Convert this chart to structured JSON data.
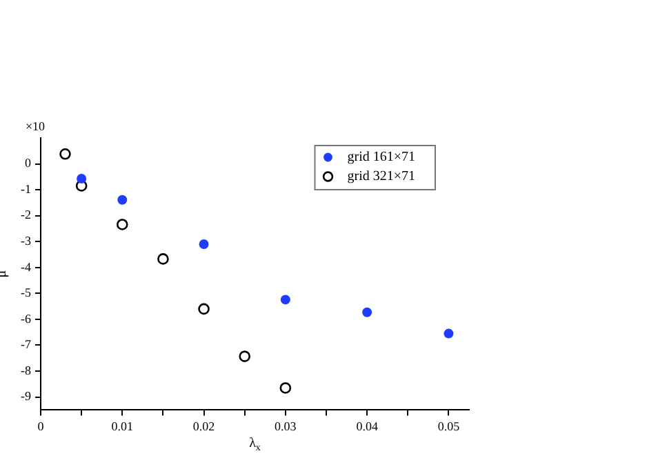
{
  "chart_data": {
    "type": "scatter",
    "xlabel": "λ$_{x}$",
    "ylabel": "μ",
    "annotations": [
      "×10"
    ],
    "xlim": [
      0,
      0.0525
    ],
    "ylim": [
      -9.5,
      1
    ],
    "xticks": [
      0,
      {
        "value": 0.005,
        "label": null
      },
      0.01,
      {
        "value": 0.015,
        "label": null
      },
      0.02,
      {
        "value": 0.025,
        "label": null
      },
      0.03,
      {
        "value": 0.035,
        "label": null
      },
      0.04,
      {
        "value": 0.045,
        "label": null
      },
      0.05
    ],
    "yticks": [
      -9,
      -8,
      -7,
      -6,
      -5,
      -4,
      -3,
      -2,
      -1,
      0
    ],
    "marker": "circle",
    "legend": "top right",
    "grid": false,
    "series": [
      {
        "name": "grid 161×71",
        "color": "#1f3cff",
        "x": [
          0.005,
          0.01,
          0.02,
          0.03,
          0.04,
          0.05
        ],
        "values": [
          -0.57,
          -1.39,
          -3.1,
          -5.24,
          -5.73,
          -6.55
        ]
      },
      {
        "name": "grid 321×71",
        "color": "#000000",
        "x": [
          0.003,
          0.005,
          0.01,
          0.015,
          0.02,
          0.025,
          0.03
        ],
        "values": [
          0.38,
          -0.85,
          -2.34,
          -3.67,
          -5.6,
          -7.43,
          -8.65
        ]
      }
    ]
  }
}
